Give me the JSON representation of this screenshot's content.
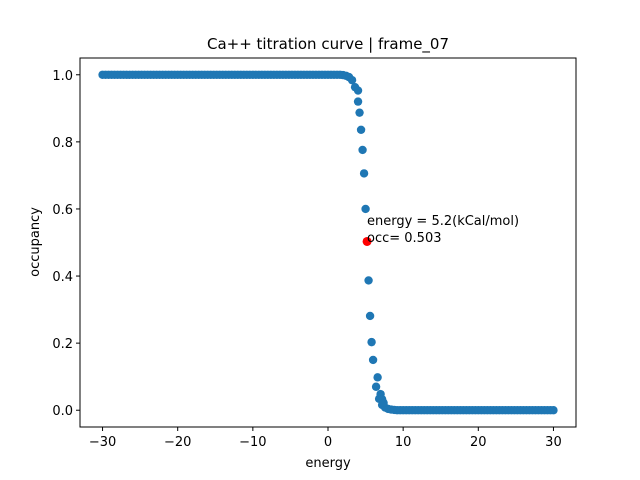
{
  "chart_data": {
    "type": "scatter",
    "title": "Ca++ titration curve | frame_07",
    "xlabel": "energy",
    "ylabel": "occupancy",
    "xlim": [
      -33,
      33
    ],
    "ylim": [
      -0.05,
      1.05
    ],
    "xticks": [
      -30,
      -20,
      -10,
      0,
      10,
      20,
      30
    ],
    "xtick_labels": [
      "−30",
      "−20",
      "−10",
      "0",
      "10",
      "20",
      "30"
    ],
    "yticks": [
      0.0,
      0.2,
      0.4,
      0.6,
      0.8,
      1.0
    ],
    "ytick_labels": [
      "0.0",
      "0.2",
      "0.4",
      "0.6",
      "0.8",
      "1.0"
    ],
    "grid": false,
    "series_color": "#1f77b4",
    "highlight_color": "#ff0000",
    "series": [
      {
        "name": "",
        "x": [
          -30.0,
          -29.6,
          -29.2,
          -28.8,
          -28.4,
          -28.0,
          -27.6,
          -27.2,
          -26.8,
          -26.4,
          -26.0,
          -25.6,
          -25.2,
          -24.8,
          -24.4,
          -24.0,
          -23.6,
          -23.2,
          -22.8,
          -22.4,
          -22.0,
          -21.6,
          -21.2,
          -20.8,
          -20.4,
          -20.0,
          -19.6,
          -19.2,
          -18.8,
          -18.4,
          -18.0,
          -17.6,
          -17.2,
          -16.8,
          -16.4,
          -16.0,
          -15.6,
          -15.2,
          -14.8,
          -14.4,
          -14.0,
          -13.6,
          -13.2,
          -12.8,
          -12.4,
          -12.0,
          -11.6,
          -11.2,
          -10.8,
          -10.4,
          -10.0,
          -9.6,
          -9.2,
          -8.8,
          -8.4,
          -8.0,
          -7.6,
          -7.2,
          -6.8,
          -6.4,
          -6.0,
          -5.6,
          -5.2,
          -4.8,
          -4.4,
          -4.0,
          -3.6,
          -3.2,
          -2.8,
          -2.4,
          -2.0,
          -1.6,
          -1.2,
          -0.8,
          -0.4,
          0.0,
          0.4,
          0.8,
          1.2,
          1.6,
          2.0,
          2.4,
          2.8,
          3.2,
          3.6,
          4.0,
          4.4,
          4.8,
          5.2,
          5.6,
          6.0,
          6.4,
          6.8,
          7.2,
          7.6,
          8.0,
          8.4,
          8.8,
          9.2,
          9.6,
          10.0,
          10.4,
          10.8,
          11.2,
          11.6,
          12.0,
          12.4,
          12.8,
          13.2,
          13.6,
          14.0,
          14.4,
          14.8,
          15.2,
          15.6,
          16.0,
          16.4,
          16.8,
          17.2,
          17.6,
          18.0,
          18.4,
          18.8,
          19.2,
          19.6,
          20.0,
          20.4,
          20.8,
          21.2,
          21.6,
          22.0,
          22.4,
          22.8,
          23.2,
          23.6,
          24.0,
          24.4,
          24.8,
          25.2,
          25.6,
          26.0,
          26.4,
          26.8,
          27.2,
          27.6,
          28.0,
          28.4,
          28.8,
          29.2,
          29.6,
          30.0
        ],
        "y": [
          1,
          1,
          1,
          1,
          1,
          1,
          1,
          1,
          1,
          1,
          1,
          1,
          1,
          1,
          1,
          1,
          1,
          1,
          1,
          1,
          1,
          1,
          1,
          1,
          1,
          1,
          1,
          1,
          1,
          1,
          1,
          1,
          1,
          1,
          1,
          1,
          1,
          1,
          1,
          1,
          1,
          1,
          1,
          1,
          1,
          1,
          1,
          1,
          1,
          1,
          1,
          1,
          1,
          1,
          1,
          1,
          1,
          1,
          1,
          1,
          1,
          1,
          1,
          1,
          1,
          1,
          1,
          1,
          1,
          1,
          1,
          1,
          1,
          1,
          1,
          1,
          1,
          1,
          1,
          1,
          0.999,
          0.997,
          0.993,
          0.984,
          0.963,
          0.92,
          0.836,
          0.706,
          0.503,
          0.281,
          0.15,
          0.07,
          0.034,
          0.016,
          0.008,
          0.004,
          0.002,
          0.001,
          0,
          0,
          0,
          0,
          0,
          0,
          0,
          0,
          0,
          0,
          0,
          0,
          0,
          0,
          0,
          0,
          0,
          0,
          0,
          0,
          0,
          0,
          0,
          0,
          0,
          0,
          0,
          0,
          0,
          0,
          0,
          0,
          0,
          0,
          0,
          0,
          0,
          0,
          0,
          0,
          0,
          0,
          0,
          0,
          0,
          0,
          0,
          0,
          0,
          0,
          0,
          0,
          0
        ]
      }
    ],
    "extra_points": [
      {
        "x": 4.0,
        "y": 0.953
      },
      {
        "x": 4.2,
        "y": 0.887
      },
      {
        "x": 4.6,
        "y": 0.776
      },
      {
        "x": 5.0,
        "y": 0.6
      },
      {
        "x": 5.4,
        "y": 0.387
      },
      {
        "x": 5.8,
        "y": 0.203
      },
      {
        "x": 6.6,
        "y": 0.098
      },
      {
        "x": 7.0,
        "y": 0.048
      },
      {
        "x": 7.2,
        "y": 0.033
      },
      {
        "x": 7.4,
        "y": 0.022
      }
    ],
    "highlight_point": {
      "x": 5.2,
      "y": 0.503
    },
    "annotation": {
      "line1": "energy = 5.2(kCal/mol)",
      "line2": "occ= 0.503"
    }
  }
}
